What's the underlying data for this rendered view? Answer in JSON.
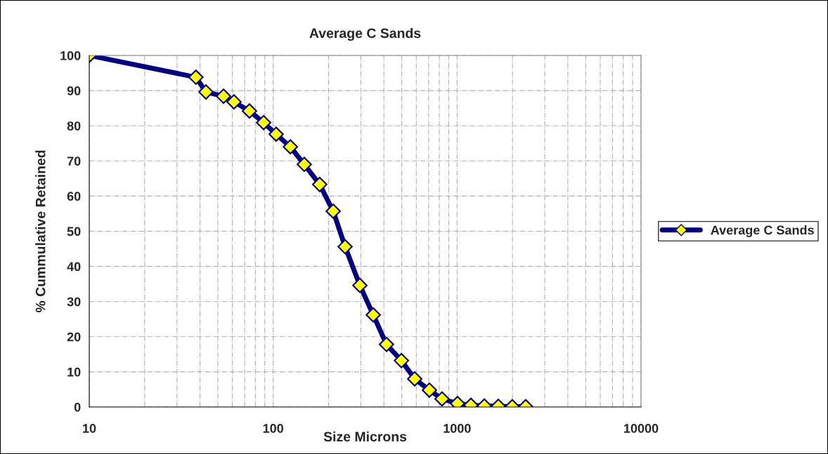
{
  "chart_data": {
    "type": "line",
    "title": "Average C Sands",
    "xlabel": "Size Microns",
    "ylabel": "% Cummulative Retained",
    "x": [
      10,
      38,
      43.1,
      53.7,
      61.2,
      74.3,
      88.7,
      103.8,
      124,
      147.6,
      179,
      212,
      246,
      296,
      350,
      413,
      498,
      588,
      707,
      828,
      1005,
      1189,
      1406,
      1675,
      1995,
      2360
    ],
    "series": [
      {
        "name": "Average C Sands",
        "color": "#000080",
        "values": [
          100,
          93.8,
          89.6,
          88.4,
          86.8,
          84.2,
          80.9,
          77.6,
          74.0,
          69.0,
          63.3,
          55.7,
          45.6,
          34.6,
          26.2,
          17.8,
          13.2,
          8.0,
          4.8,
          2.3,
          1.0,
          0.5,
          0.3,
          0.2,
          0.1,
          0.1
        ]
      }
    ],
    "log": "x",
    "xlim": [
      10,
      10000
    ],
    "xticks": [
      10,
      100,
      1000,
      10000
    ],
    "ylim": [
      0,
      100
    ],
    "yticks": [
      0,
      10,
      20,
      30,
      40,
      50,
      60,
      70,
      80,
      90,
      100
    ],
    "grid": true,
    "legend": "right",
    "marker": "diamond",
    "line_style": "solid"
  }
}
